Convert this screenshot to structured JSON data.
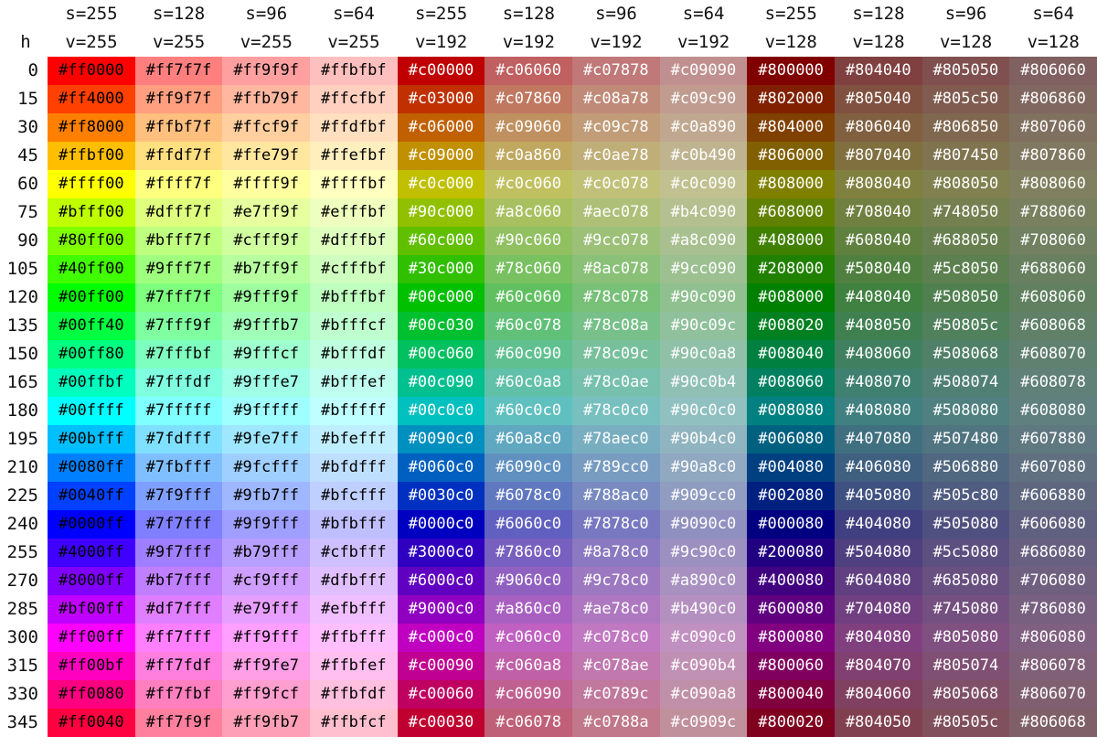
{
  "header": {
    "h_label": "h",
    "columns": [
      {
        "s": "s=255",
        "v": "v=255"
      },
      {
        "s": "s=128",
        "v": "v=255"
      },
      {
        "s": "s=96",
        "v": "v=255"
      },
      {
        "s": "s=64",
        "v": "v=255"
      },
      {
        "s": "s=255",
        "v": "v=192"
      },
      {
        "s": "s=128",
        "v": "v=192"
      },
      {
        "s": "s=96",
        "v": "v=192"
      },
      {
        "s": "s=64",
        "v": "v=192"
      },
      {
        "s": "s=255",
        "v": "v=128"
      },
      {
        "s": "s=128",
        "v": "v=128"
      },
      {
        "s": "s=96",
        "v": "v=128"
      },
      {
        "s": "s=64",
        "v": "v=128"
      }
    ]
  },
  "rows": [
    {
      "h": "0",
      "cells": [
        "#ff0000",
        "#ff7f7f",
        "#ff9f9f",
        "#ffbfbf",
        "#c00000",
        "#c06060",
        "#c07878",
        "#c09090",
        "#800000",
        "#804040",
        "#805050",
        "#806060"
      ]
    },
    {
      "h": "15",
      "cells": [
        "#ff4000",
        "#ff9f7f",
        "#ffb79f",
        "#ffcfbf",
        "#c03000",
        "#c07860",
        "#c08a78",
        "#c09c90",
        "#802000",
        "#805040",
        "#805c50",
        "#806860"
      ]
    },
    {
      "h": "30",
      "cells": [
        "#ff8000",
        "#ffbf7f",
        "#ffcf9f",
        "#ffdfbf",
        "#c06000",
        "#c09060",
        "#c09c78",
        "#c0a890",
        "#804000",
        "#806040",
        "#806850",
        "#807060"
      ]
    },
    {
      "h": "45",
      "cells": [
        "#ffbf00",
        "#ffdf7f",
        "#ffe79f",
        "#ffefbf",
        "#c09000",
        "#c0a860",
        "#c0ae78",
        "#c0b490",
        "#806000",
        "#807040",
        "#807450",
        "#807860"
      ]
    },
    {
      "h": "60",
      "cells": [
        "#ffff00",
        "#ffff7f",
        "#ffff9f",
        "#ffffbf",
        "#c0c000",
        "#c0c060",
        "#c0c078",
        "#c0c090",
        "#808000",
        "#808040",
        "#808050",
        "#808060"
      ]
    },
    {
      "h": "75",
      "cells": [
        "#bfff00",
        "#dfff7f",
        "#e7ff9f",
        "#efffbf",
        "#90c000",
        "#a8c060",
        "#aec078",
        "#b4c090",
        "#608000",
        "#708040",
        "#748050",
        "#788060"
      ]
    },
    {
      "h": "90",
      "cells": [
        "#80ff00",
        "#bfff7f",
        "#cfff9f",
        "#dfffbf",
        "#60c000",
        "#90c060",
        "#9cc078",
        "#a8c090",
        "#408000",
        "#608040",
        "#688050",
        "#708060"
      ]
    },
    {
      "h": "105",
      "cells": [
        "#40ff00",
        "#9fff7f",
        "#b7ff9f",
        "#cfffbf",
        "#30c000",
        "#78c060",
        "#8ac078",
        "#9cc090",
        "#208000",
        "#508040",
        "#5c8050",
        "#688060"
      ]
    },
    {
      "h": "120",
      "cells": [
        "#00ff00",
        "#7fff7f",
        "#9fff9f",
        "#bfffbf",
        "#00c000",
        "#60c060",
        "#78c078",
        "#90c090",
        "#008000",
        "#408040",
        "#508050",
        "#608060"
      ]
    },
    {
      "h": "135",
      "cells": [
        "#00ff40",
        "#7fff9f",
        "#9fffb7",
        "#bfffcf",
        "#00c030",
        "#60c078",
        "#78c08a",
        "#90c09c",
        "#008020",
        "#408050",
        "#50805c",
        "#608068"
      ]
    },
    {
      "h": "150",
      "cells": [
        "#00ff80",
        "#7fffbf",
        "#9fffcf",
        "#bfffdf",
        "#00c060",
        "#60c090",
        "#78c09c",
        "#90c0a8",
        "#008040",
        "#408060",
        "#508068",
        "#608070"
      ]
    },
    {
      "h": "165",
      "cells": [
        "#00ffbf",
        "#7fffdf",
        "#9fffe7",
        "#bfffef",
        "#00c090",
        "#60c0a8",
        "#78c0ae",
        "#90c0b4",
        "#008060",
        "#408070",
        "#508074",
        "#608078"
      ]
    },
    {
      "h": "180",
      "cells": [
        "#00ffff",
        "#7fffff",
        "#9fffff",
        "#bfffff",
        "#00c0c0",
        "#60c0c0",
        "#78c0c0",
        "#90c0c0",
        "#008080",
        "#408080",
        "#508080",
        "#608080"
      ]
    },
    {
      "h": "195",
      "cells": [
        "#00bfff",
        "#7fdfff",
        "#9fe7ff",
        "#bfefff",
        "#0090c0",
        "#60a8c0",
        "#78aec0",
        "#90b4c0",
        "#006080",
        "#407080",
        "#507480",
        "#607880"
      ]
    },
    {
      "h": "210",
      "cells": [
        "#0080ff",
        "#7fbfff",
        "#9fcfff",
        "#bfdfff",
        "#0060c0",
        "#6090c0",
        "#789cc0",
        "#90a8c0",
        "#004080",
        "#406080",
        "#506880",
        "#607080"
      ]
    },
    {
      "h": "225",
      "cells": [
        "#0040ff",
        "#7f9fff",
        "#9fb7ff",
        "#bfcfff",
        "#0030c0",
        "#6078c0",
        "#788ac0",
        "#909cc0",
        "#002080",
        "#405080",
        "#505c80",
        "#606880"
      ]
    },
    {
      "h": "240",
      "cells": [
        "#0000ff",
        "#7f7fff",
        "#9f9fff",
        "#bfbfff",
        "#0000c0",
        "#6060c0",
        "#7878c0",
        "#9090c0",
        "#000080",
        "#404080",
        "#505080",
        "#606080"
      ]
    },
    {
      "h": "255",
      "cells": [
        "#4000ff",
        "#9f7fff",
        "#b79fff",
        "#cfbfff",
        "#3000c0",
        "#7860c0",
        "#8a78c0",
        "#9c90c0",
        "#200080",
        "#504080",
        "#5c5080",
        "#686080"
      ]
    },
    {
      "h": "270",
      "cells": [
        "#8000ff",
        "#bf7fff",
        "#cf9fff",
        "#dfbfff",
        "#6000c0",
        "#9060c0",
        "#9c78c0",
        "#a890c0",
        "#400080",
        "#604080",
        "#685080",
        "#706080"
      ]
    },
    {
      "h": "285",
      "cells": [
        "#bf00ff",
        "#df7fff",
        "#e79fff",
        "#efbfff",
        "#9000c0",
        "#a860c0",
        "#ae78c0",
        "#b490c0",
        "#600080",
        "#704080",
        "#745080",
        "#786080"
      ]
    },
    {
      "h": "300",
      "cells": [
        "#ff00ff",
        "#ff7fff",
        "#ff9fff",
        "#ffbfff",
        "#c000c0",
        "#c060c0",
        "#c078c0",
        "#c090c0",
        "#800080",
        "#804080",
        "#805080",
        "#806080"
      ]
    },
    {
      "h": "315",
      "cells": [
        "#ff00bf",
        "#ff7fdf",
        "#ff9fe7",
        "#ffbfef",
        "#c00090",
        "#c060a8",
        "#c078ae",
        "#c090b4",
        "#800060",
        "#804070",
        "#805074",
        "#806078"
      ]
    },
    {
      "h": "330",
      "cells": [
        "#ff0080",
        "#ff7fbf",
        "#ff9fcf",
        "#ffbfdf",
        "#c00060",
        "#c06090",
        "#c0789c",
        "#c090a8",
        "#800040",
        "#804060",
        "#805068",
        "#806070"
      ]
    },
    {
      "h": "345",
      "cells": [
        "#ff0040",
        "#ff7f9f",
        "#ff9fb7",
        "#ffbfcf",
        "#c00030",
        "#c06078",
        "#c0788a",
        "#c0909c",
        "#800020",
        "#804050",
        "#80505c",
        "#806068"
      ]
    }
  ]
}
